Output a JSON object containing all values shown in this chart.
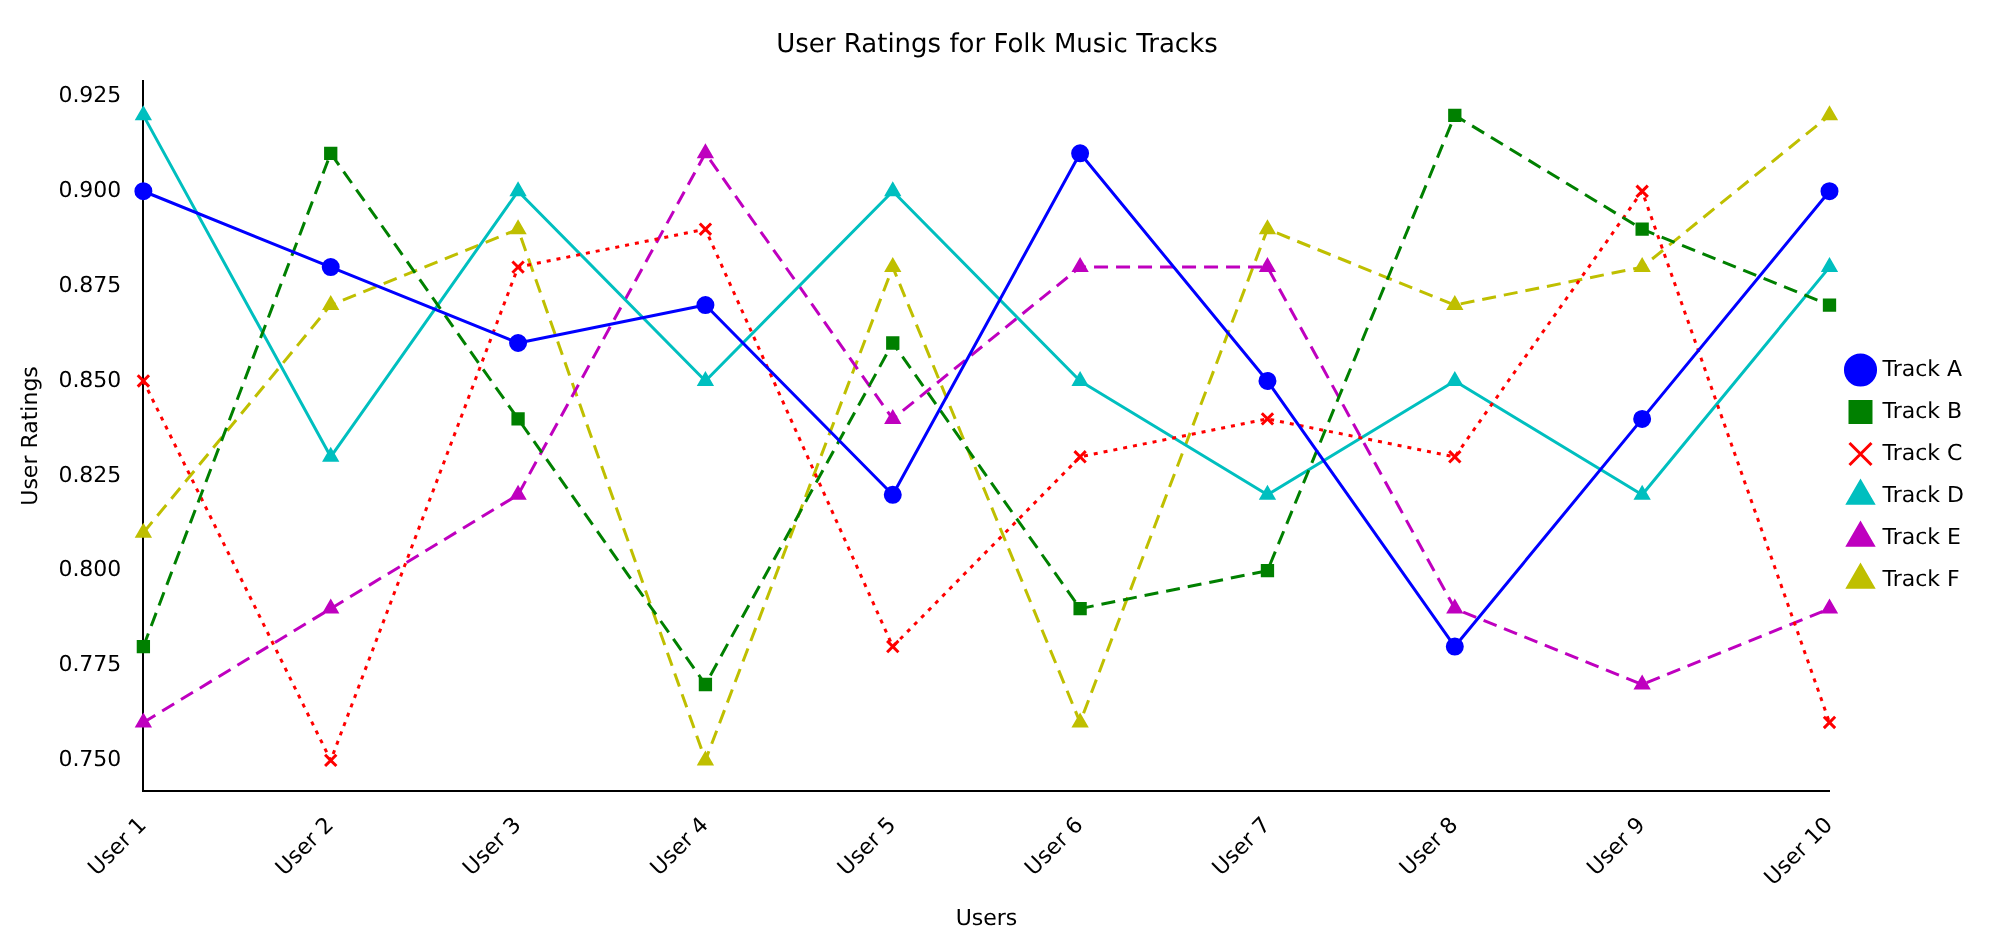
{
  "chart_data": {
    "type": "line",
    "title": "User Ratings for Folk Music Tracks",
    "xlabel": "Users",
    "ylabel": "User Ratings",
    "categories": [
      "User 1",
      "User 2",
      "User 3",
      "User 4",
      "User 5",
      "User 6",
      "User 7",
      "User 8",
      "User 9",
      "User 10"
    ],
    "series": [
      {
        "name": "Track A",
        "color": "#0000ff",
        "marker": "circle",
        "line_style": "solid",
        "values": [
          0.9,
          0.88,
          0.86,
          0.87,
          0.82,
          0.91,
          0.85,
          0.78,
          0.84,
          0.9
        ]
      },
      {
        "name": "Track B",
        "color": "#008000",
        "marker": "square",
        "line_style": "dashed",
        "values": [
          0.78,
          0.91,
          0.84,
          0.77,
          0.86,
          0.79,
          0.8,
          0.92,
          0.89,
          0.87
        ]
      },
      {
        "name": "Track C",
        "color": "#ff0000",
        "marker": "cross",
        "line_style": "dotted",
        "values": [
          0.85,
          0.75,
          0.88,
          0.89,
          0.78,
          0.83,
          0.84,
          0.83,
          0.9,
          0.76
        ]
      },
      {
        "name": "Track D",
        "color": "#00bfbf",
        "marker": "triangle",
        "line_style": "solid",
        "values": [
          0.92,
          0.83,
          0.9,
          0.85,
          0.9,
          0.85,
          0.82,
          0.85,
          0.82,
          0.88
        ]
      },
      {
        "name": "Track E",
        "color": "#bf00bf",
        "marker": "triangle",
        "line_style": "dashed",
        "values": [
          0.76,
          0.79,
          0.82,
          0.91,
          0.84,
          0.88,
          0.88,
          0.79,
          0.77,
          0.79
        ]
      },
      {
        "name": "Track F",
        "color": "#bfbf00",
        "marker": "triangle",
        "line_style": "dashed",
        "values": [
          0.81,
          0.87,
          0.89,
          0.75,
          0.88,
          0.76,
          0.89,
          0.87,
          0.88,
          0.92
        ]
      }
    ],
    "ylim": [
      0.742,
      0.929
    ],
    "yticks": [
      {
        "value": 0.75,
        "label": "0.750"
      },
      {
        "value": 0.775,
        "label": "0.775"
      },
      {
        "value": 0.8,
        "label": "0.800"
      },
      {
        "value": 0.825,
        "label": "0.825"
      },
      {
        "value": 0.85,
        "label": "0.850"
      },
      {
        "value": 0.875,
        "label": "0.875"
      },
      {
        "value": 0.9,
        "label": "0.900"
      },
      {
        "value": 0.925,
        "label": "0.925"
      }
    ],
    "grid": false,
    "legend": "right"
  }
}
